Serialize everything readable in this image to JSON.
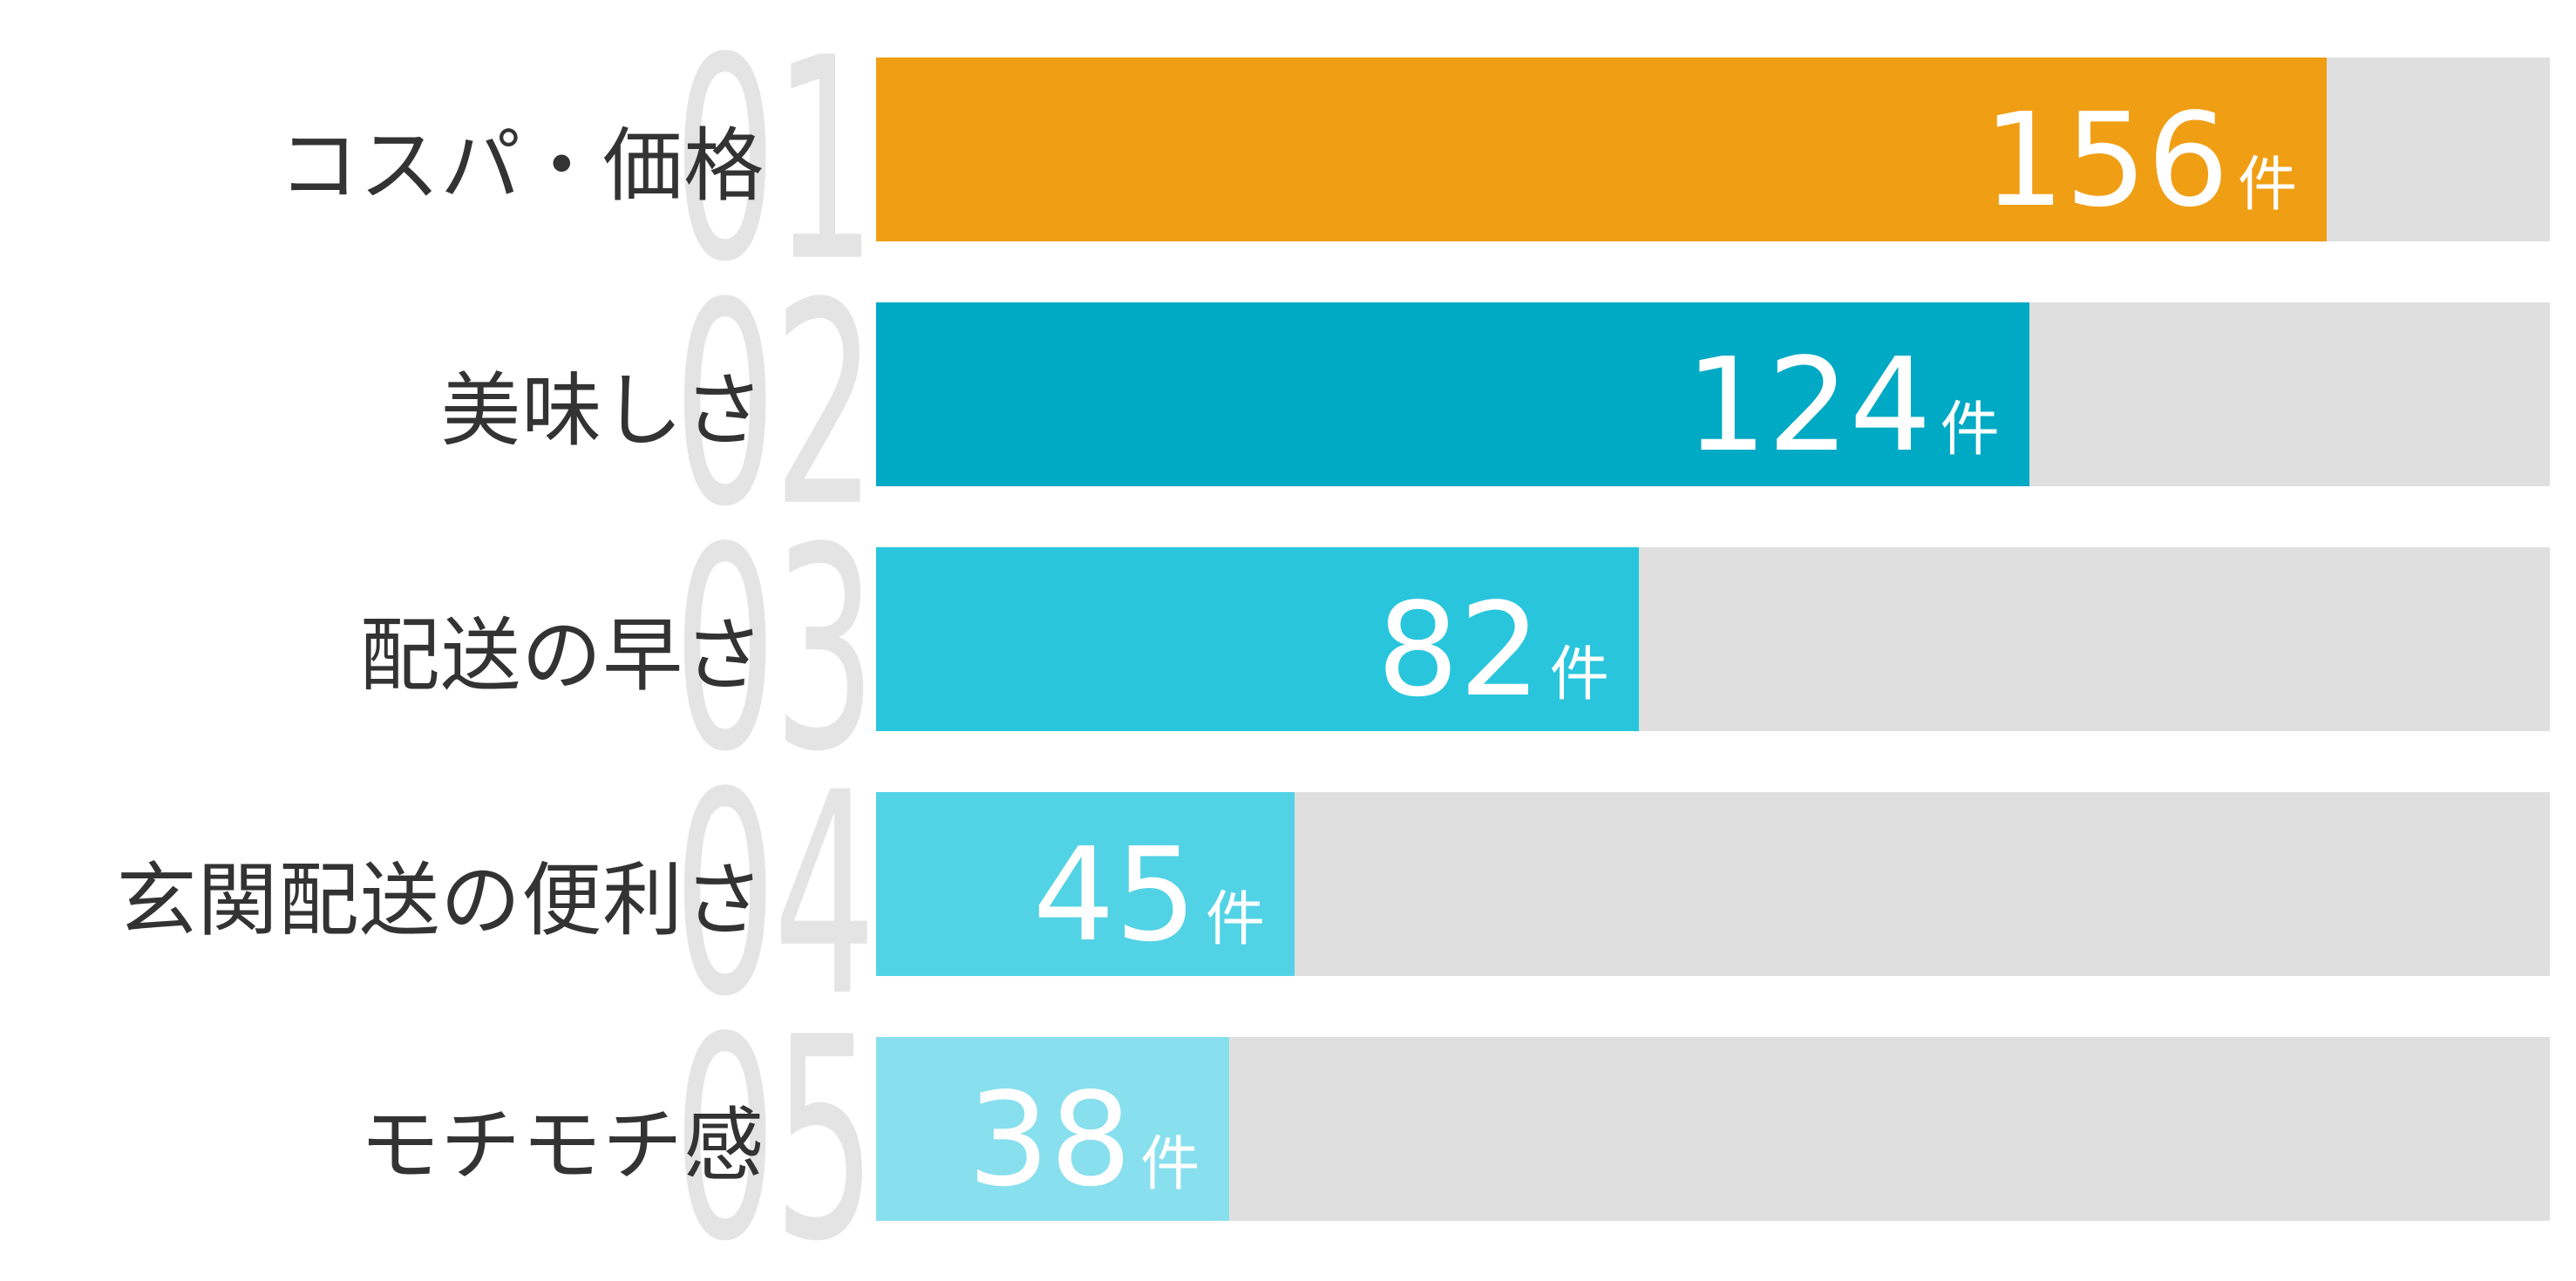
{
  "chart_data": {
    "type": "bar",
    "orientation": "horizontal",
    "title": "",
    "xlabel": "",
    "ylabel": "",
    "unit": "件",
    "xlim": [
      0,
      180
    ],
    "grid": false,
    "legend": false,
    "categories": [
      "コスパ・価格",
      "美味しさ",
      "配送の早さ",
      "玄関配送の便利さ",
      "モチモチ感"
    ],
    "ranks": [
      "01",
      "02",
      "03",
      "04",
      "05"
    ],
    "values": [
      156,
      124,
      82,
      45,
      38
    ],
    "value_labels": [
      "156",
      "124",
      "82",
      "45",
      "38"
    ],
    "bar_colors": [
      "#f09e14",
      "#00a9c4",
      "#29c5dd",
      "#52d2e5",
      "#88dfee"
    ],
    "track_color": "#dfdfdf"
  },
  "colors": {
    "background": "#ffffff",
    "category_label": "#333333",
    "rank_ghost": "#e4e4e4",
    "value_text": "#ffffff"
  }
}
